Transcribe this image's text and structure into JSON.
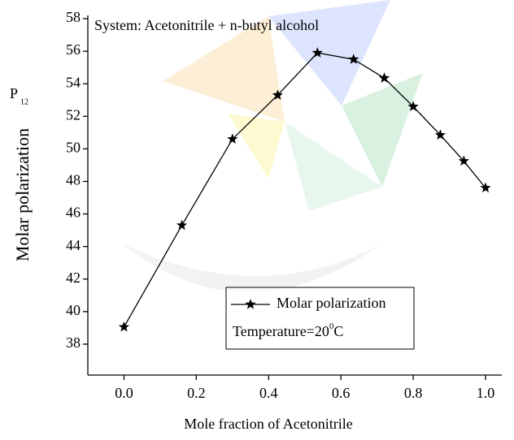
{
  "chart_data": {
    "type": "line",
    "title": "System: Acetonitrile + n-butyl alcohol",
    "x_label": "Mole fraction of Acetonitrile",
    "y_label": "Molar polarization",
    "y_label_symbol": "P",
    "y_label_subscript": "12",
    "x": [
      0,
      0.16,
      0.3,
      0.425,
      0.535,
      0.635,
      0.72,
      0.8,
      0.875,
      0.94,
      1.0
    ],
    "series": [
      {
        "name": "Molar polarization",
        "color": "#000000",
        "values": [
          39.05,
          45.3,
          50.6,
          53.3,
          55.9,
          55.5,
          54.35,
          52.6,
          50.85,
          49.25,
          47.6
        ]
      }
    ],
    "annotation": {
      "text": "Temperature=20",
      "superscript": "0",
      "suffix": "C"
    },
    "xlim": [
      -0.1,
      1.045
    ],
    "ylim": [
      36.1,
      58.2
    ],
    "xticks": [
      {
        "value": 0,
        "label": "0.0"
      },
      0.2,
      0.4,
      0.6,
      0.8,
      {
        "value": 1,
        "label": "1.0"
      }
    ],
    "yticks": [
      38,
      40,
      42,
      44,
      46,
      48,
      50,
      52,
      54,
      56,
      58
    ],
    "legend": "lower right",
    "grid": false
  }
}
